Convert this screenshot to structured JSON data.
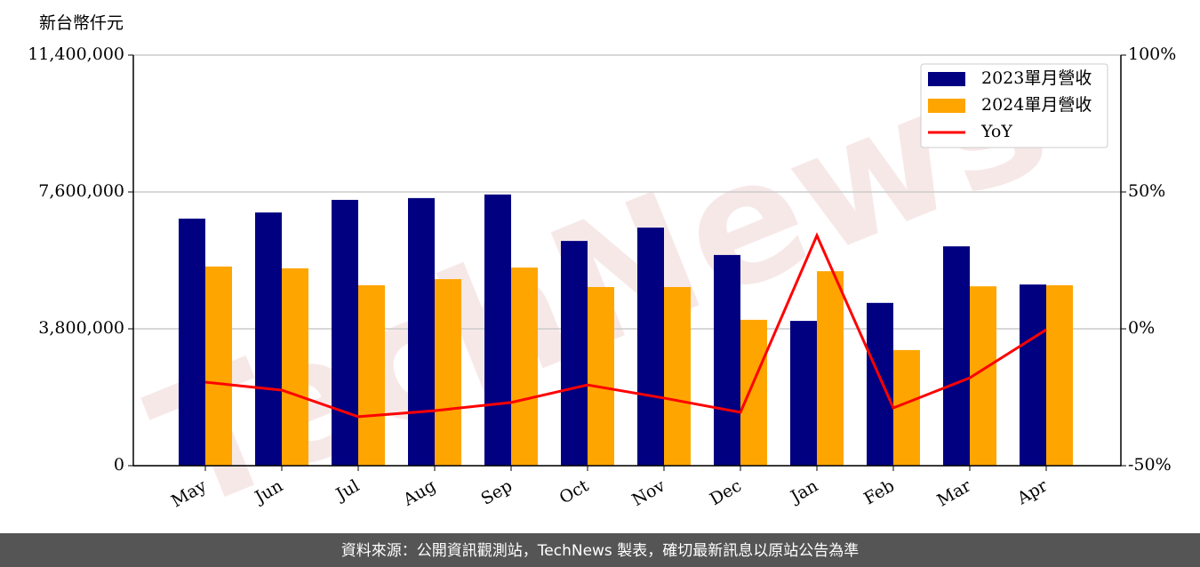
{
  "chart_data": {
    "type": "bar_line",
    "y_axis_label": "新台幣仟元",
    "watermark": "TechNews",
    "source": "資料來源：公開資訊觀測站，TechNews 製表，確切最新訊息以原站公告為準",
    "categories": [
      "May",
      "Jun",
      "Jul",
      "Aug",
      "Sep",
      "Oct",
      "Nov",
      "Dec",
      "Jan",
      "Feb",
      "Mar",
      "Apr"
    ],
    "series": [
      {
        "name": "2023單月營收",
        "type": "bar",
        "color": "#000080",
        "values": [
          6860000,
          7030000,
          7380000,
          7430000,
          7530000,
          6240000,
          6610000,
          5850000,
          4020000,
          4520000,
          6090000,
          5030000
        ]
      },
      {
        "name": "2024單月營收",
        "type": "bar",
        "color": "#ffa500",
        "values": [
          5530000,
          5480000,
          5010000,
          5180000,
          5500000,
          4960000,
          4960000,
          4050000,
          5400000,
          3210000,
          4980000,
          5010000
        ]
      },
      {
        "name": "YoY",
        "type": "line",
        "axis": "y2",
        "color": "#ff0000",
        "values": [
          -19.5,
          -22.4,
          -32.1,
          -29.9,
          -26.9,
          -20.5,
          -25.3,
          -30.5,
          34.1,
          -28.9,
          -17.9,
          -0.3
        ]
      }
    ],
    "ylim": [
      0,
      11400000
    ],
    "yticks": [
      0,
      {
        "value": 3800000,
        "label": "3,800,000"
      },
      {
        "value": 7600000,
        "label": "7,600,000"
      },
      {
        "value": 11400000,
        "label": "11,400,000"
      }
    ],
    "y2lim": [
      -50,
      100
    ],
    "y2ticks": [
      {
        "value": -50,
        "label": "-50%"
      },
      {
        "value": 0,
        "label": "0%"
      },
      {
        "value": 50,
        "label": "50%"
      },
      {
        "value": 100,
        "label": "100%"
      }
    ],
    "grid": true,
    "legend": "upper right"
  }
}
